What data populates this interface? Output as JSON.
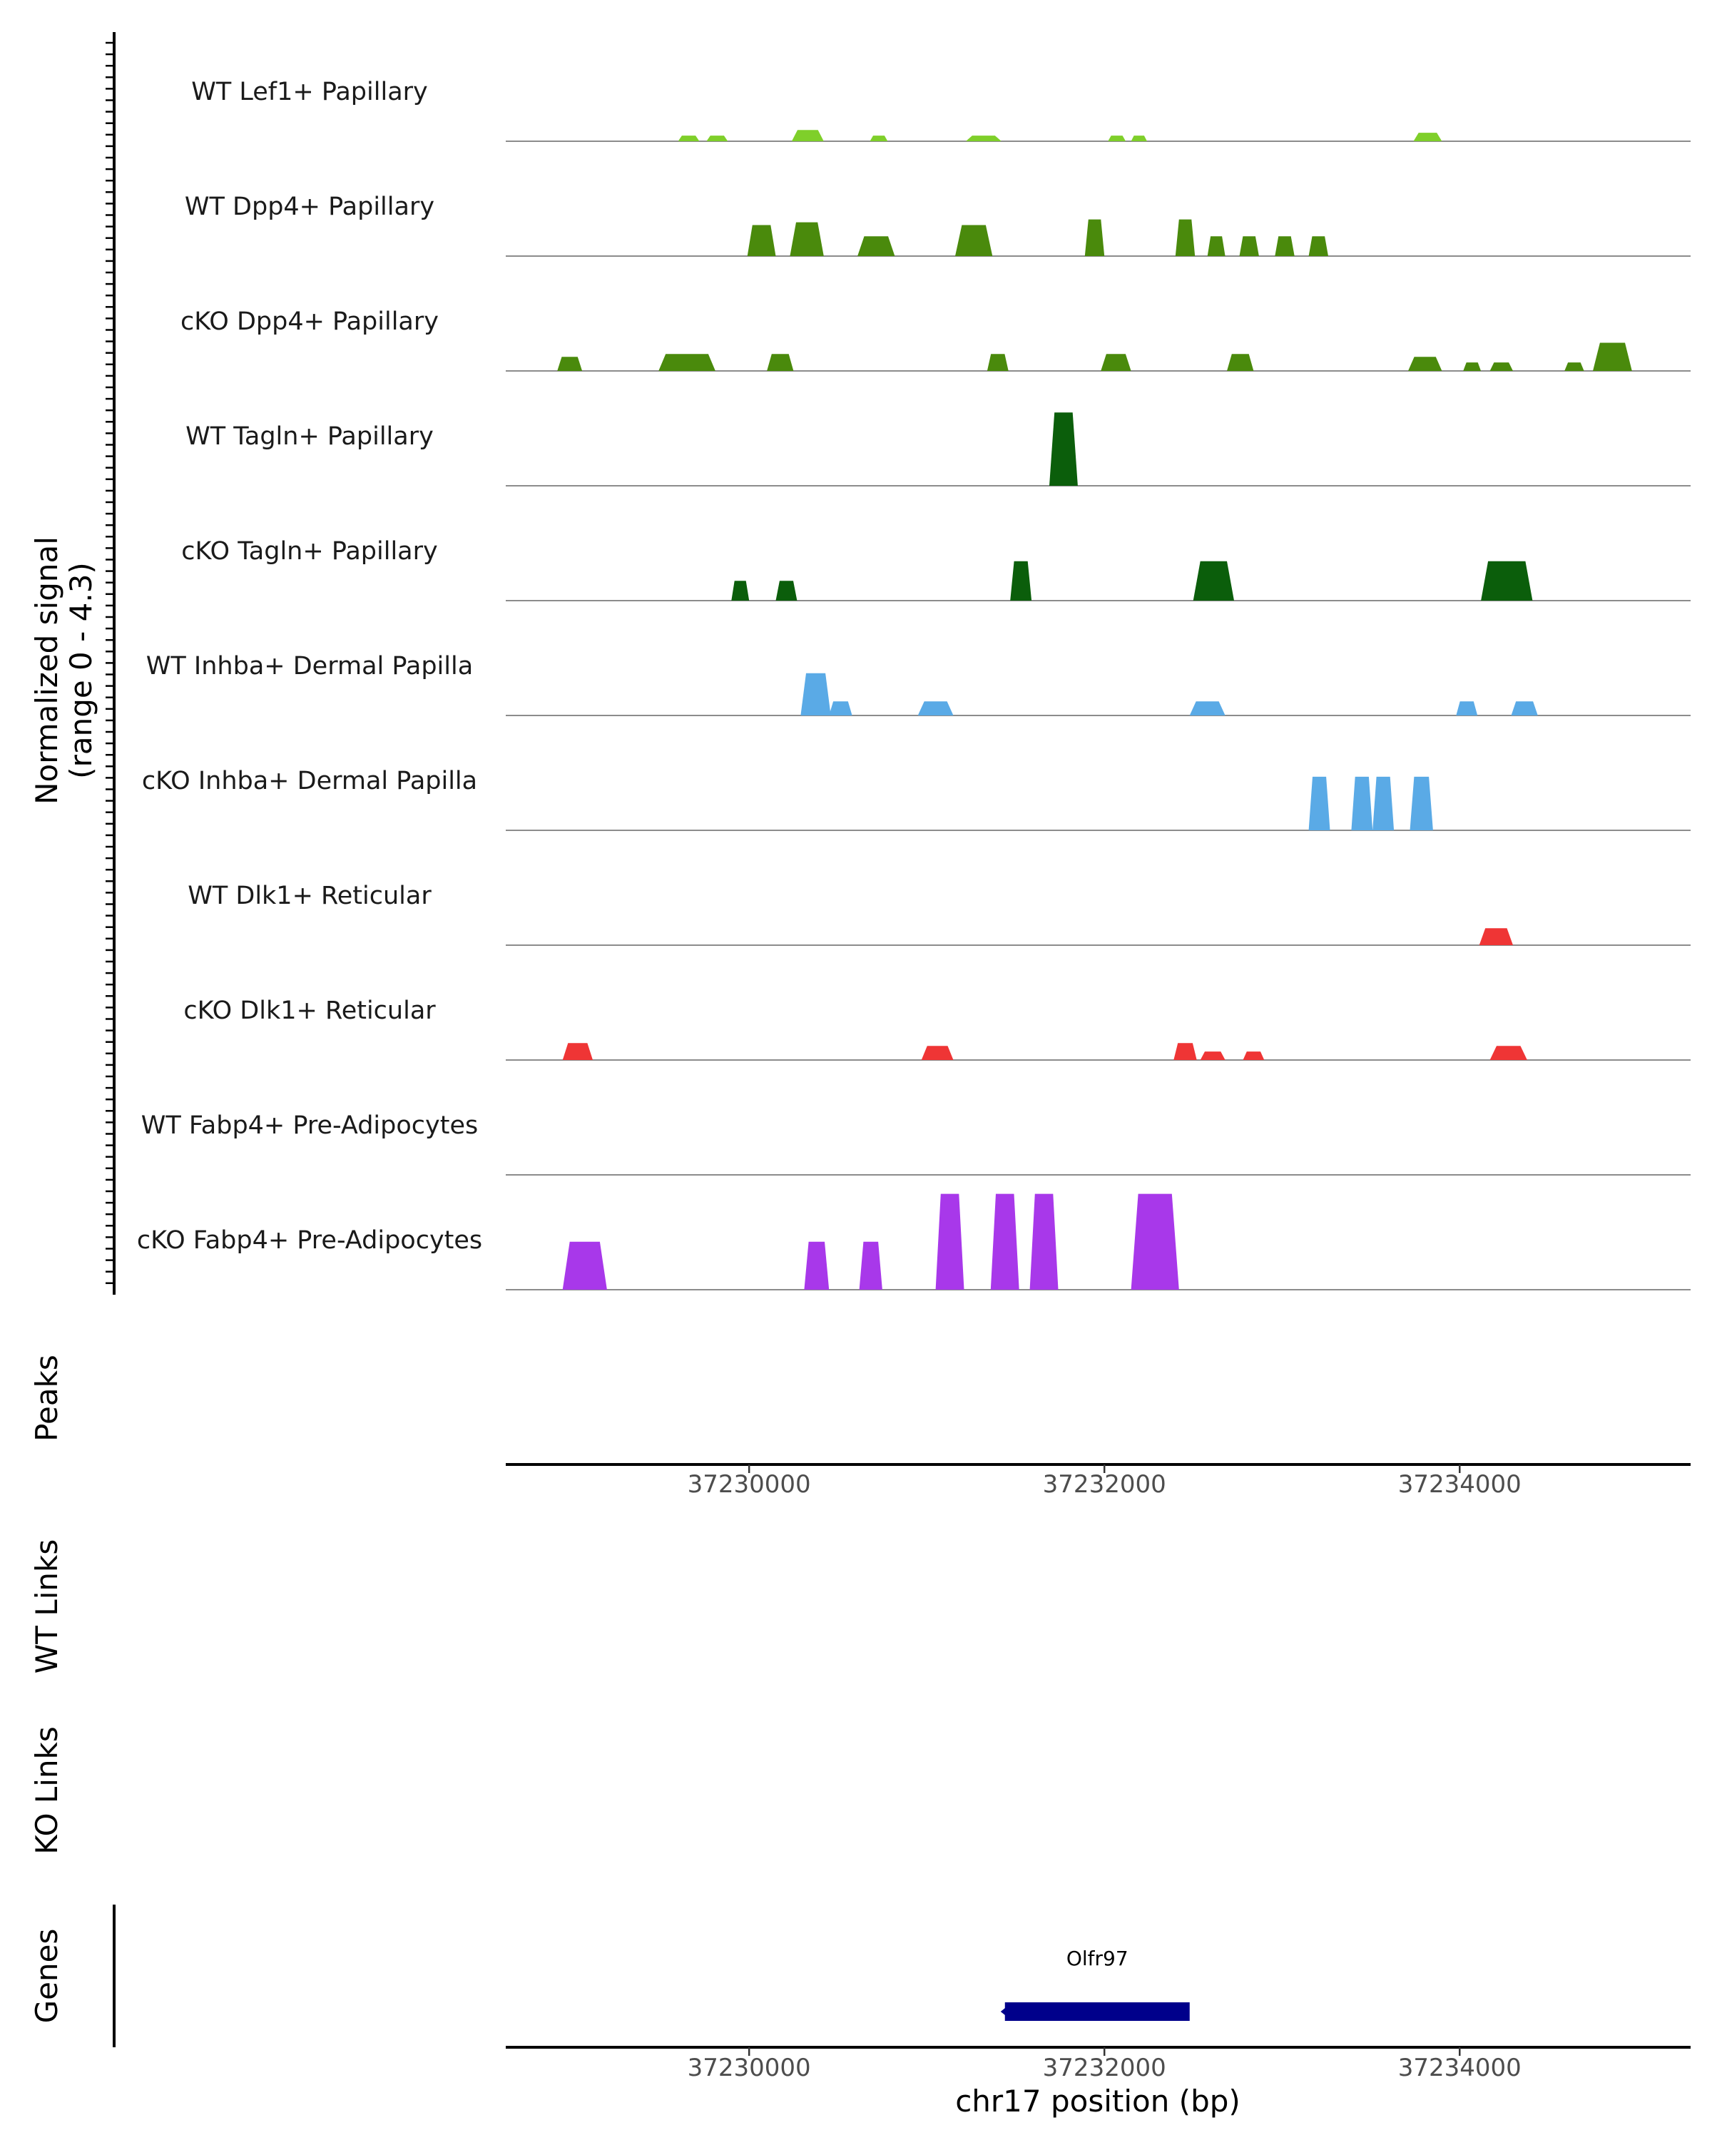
{
  "chart_data": {
    "type": "area",
    "title": "",
    "xlabel": "chr17 position (bp)",
    "ylabel": "Normalized signal\n(range 0 - 4.3)",
    "signal_range": [
      0,
      4.3
    ],
    "xlim": [
      37228630,
      37235300
    ],
    "x_ticks": [
      37230000,
      37232000,
      37234000
    ],
    "x_tick_labels": [
      "37230000",
      "37232000",
      "37234000"
    ],
    "tracks": [
      {
        "name": "WT Lef1+ Papillary",
        "color": "#7fcf2a",
        "peaks": [
          [
            37229600,
            37229720,
            0.2
          ],
          [
            37229760,
            37229880,
            0.2
          ],
          [
            37230240,
            37230420,
            0.4
          ],
          [
            37230680,
            37230780,
            0.2
          ],
          [
            37231220,
            37231420,
            0.2
          ],
          [
            37232020,
            37232120,
            0.2
          ],
          [
            37232150,
            37232240,
            0.2
          ],
          [
            37233740,
            37233900,
            0.3
          ]
        ]
      },
      {
        "name": "WT Dpp4+ Papillary",
        "color": "#4a8a0c",
        "peaks": [
          [
            37229990,
            37230150,
            1.1
          ],
          [
            37230230,
            37230420,
            1.2
          ],
          [
            37230610,
            37230820,
            0.7
          ],
          [
            37231160,
            37231370,
            1.1
          ],
          [
            37231890,
            37232000,
            1.3
          ],
          [
            37232400,
            37232510,
            1.3
          ],
          [
            37232580,
            37232680,
            0.7
          ],
          [
            37232760,
            37232870,
            0.7
          ],
          [
            37232960,
            37233070,
            0.7
          ],
          [
            37233150,
            37233260,
            0.7
          ]
        ]
      },
      {
        "name": "cKO Dpp4+ Papillary",
        "color": "#4a8a0c",
        "peaks": [
          [
            37228920,
            37229060,
            0.5
          ],
          [
            37229490,
            37229810,
            0.6
          ],
          [
            37230100,
            37230250,
            0.6
          ],
          [
            37231340,
            37231460,
            0.6
          ],
          [
            37231980,
            37232150,
            0.6
          ],
          [
            37232690,
            37232840,
            0.6
          ],
          [
            37233710,
            37233900,
            0.5
          ],
          [
            37234020,
            37234120,
            0.3
          ],
          [
            37234170,
            37234300,
            0.3
          ],
          [
            37234590,
            37234700,
            0.3
          ],
          [
            37234750,
            37234970,
            1.0
          ]
        ]
      },
      {
        "name": "WT Tagln+ Papillary",
        "color": "#0b5e0b",
        "peaks": [
          [
            37231690,
            37231850,
            2.6
          ]
        ]
      },
      {
        "name": "cKO Tagln+ Papillary",
        "color": "#0b5e0b",
        "peaks": [
          [
            37229900,
            37230000,
            0.7
          ],
          [
            37230150,
            37230270,
            0.7
          ],
          [
            37231470,
            37231590,
            1.4
          ],
          [
            37232500,
            37232730,
            1.4
          ],
          [
            37234120,
            37234410,
            1.4
          ]
        ]
      },
      {
        "name": "WT Inhba+ Dermal Papilla",
        "color": "#5aaae6",
        "peaks": [
          [
            37230290,
            37230460,
            1.5
          ],
          [
            37230450,
            37230580,
            0.5
          ],
          [
            37230950,
            37231150,
            0.5
          ],
          [
            37232480,
            37232680,
            0.5
          ],
          [
            37233980,
            37234100,
            0.5
          ],
          [
            37234290,
            37234440,
            0.5
          ]
        ]
      },
      {
        "name": "cKO Inhba+ Dermal Papilla",
        "color": "#5aaae6",
        "peaks": [
          [
            37233150,
            37233270,
            1.9
          ],
          [
            37233390,
            37233510,
            1.9
          ],
          [
            37233510,
            37233630,
            1.9
          ],
          [
            37233720,
            37233850,
            1.9
          ]
        ]
      },
      {
        "name": "WT Dlk1+ Reticular",
        "color": "#ef3535",
        "peaks": [
          [
            37234110,
            37234300,
            0.6
          ]
        ]
      },
      {
        "name": "cKO Dlk1+ Reticular",
        "color": "#ef3535",
        "peaks": [
          [
            37228950,
            37229120,
            0.6
          ],
          [
            37230970,
            37231150,
            0.5
          ],
          [
            37232390,
            37232520,
            0.6
          ],
          [
            37232540,
            37232680,
            0.3
          ],
          [
            37232780,
            37232900,
            0.3
          ],
          [
            37234170,
            37234380,
            0.5
          ]
        ]
      },
      {
        "name": "WT Fabp4+ Pre-Adipocytes",
        "color": "#a838ea",
        "peaks": []
      },
      {
        "name": "cKO Fabp4+ Pre-Adipocytes",
        "color": "#a838ea",
        "peaks": [
          [
            37228950,
            37229200,
            1.7
          ],
          [
            37230310,
            37230450,
            1.7
          ],
          [
            37230620,
            37230750,
            1.7
          ],
          [
            37231050,
            37231210,
            3.4
          ],
          [
            37231360,
            37231520,
            3.4
          ],
          [
            37231580,
            37231740,
            3.4
          ],
          [
            37232150,
            37232420,
            3.4
          ]
        ]
      }
    ],
    "panels": [
      "Peaks",
      "WT Links",
      "KO Links",
      "Genes"
    ],
    "genes": [
      {
        "name": "Olfr97",
        "start": 37231440,
        "end": 37232480
      }
    ]
  }
}
